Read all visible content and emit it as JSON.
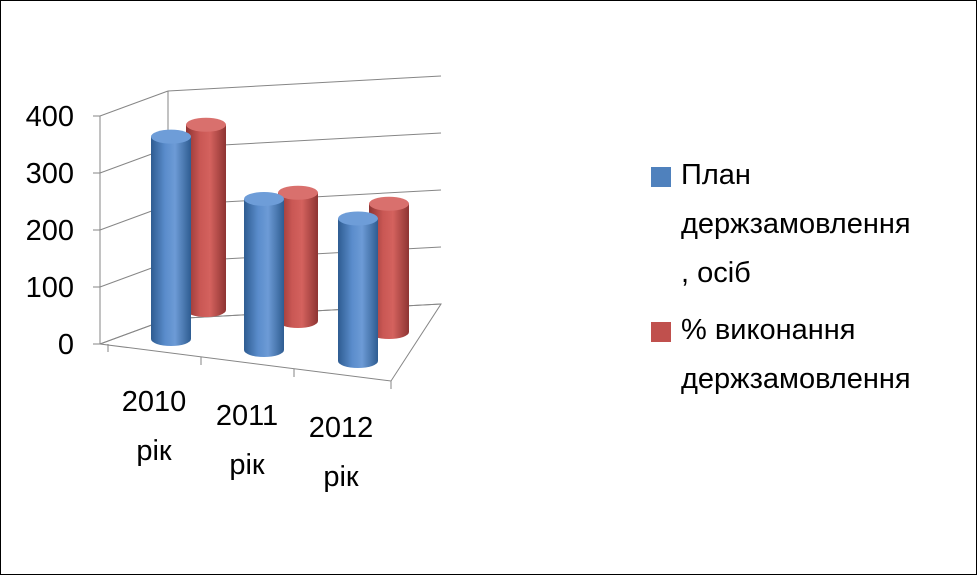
{
  "chart_data": {
    "type": "bar",
    "style": "3d-cylinder",
    "categories": [
      "2010\nрік",
      "2011\nрік",
      "2012\nрік"
    ],
    "ylim": [
      0,
      400
    ],
    "yticks": [
      "0",
      "100",
      "200",
      "300",
      "400"
    ],
    "gridlines": true,
    "legend_position": "right",
    "series": [
      {
        "name": "План держзамовлення\n, осіб",
        "color": "#4F81BD",
        "values": [
          355,
          265,
          250
        ]
      },
      {
        "name": "% виконання держзамовлення",
        "color": "#C0504D",
        "values": [
          325,
          225,
          225
        ]
      }
    ]
  }
}
